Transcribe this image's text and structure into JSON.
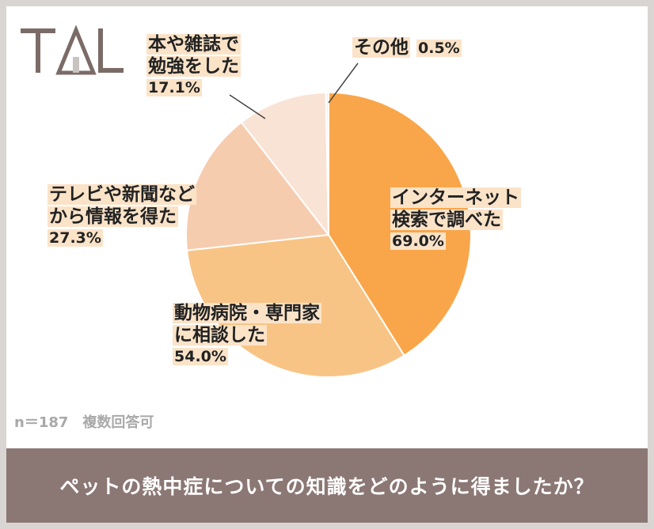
{
  "logo": {
    "text": "TAL"
  },
  "chart_data": {
    "type": "pie",
    "categories": [
      "インターネット検索で調べた",
      "動物病院・専門家に相談した",
      "テレビや新聞などから情報を得た",
      "本や雑誌で勉強をした",
      "その他"
    ],
    "values": [
      69.0,
      54.0,
      27.3,
      17.1,
      0.5
    ],
    "value_labels": [
      "69.0%",
      "54.0%",
      "27.3%",
      "17.1%",
      "0.5%"
    ],
    "colors": [
      "#f9a64a",
      "#f8c485",
      "#f6ccaf",
      "#f9e3d5",
      "#fbeee4"
    ],
    "title": "ペットの熱中症についての知識をどのように得ましたか？",
    "labels": [
      {
        "lines": [
          "インターネット",
          "検索で調べた"
        ],
        "pct": "69.0%"
      },
      {
        "lines": [
          "動物病院・専門家",
          "に相談した"
        ],
        "pct": "54.0%"
      },
      {
        "lines": [
          "テレビや新聞など",
          "から情報を得た"
        ],
        "pct": "27.3%"
      },
      {
        "lines": [
          "本や雑誌で",
          "勉強をした"
        ],
        "pct": "17.1%"
      },
      {
        "lines": [
          "その他"
        ],
        "pct": "0.5%"
      }
    ]
  },
  "note": "n＝187　複数回答可",
  "banner": {
    "text": "ペットの熱中症についての知識をどのように得ましたか？"
  }
}
